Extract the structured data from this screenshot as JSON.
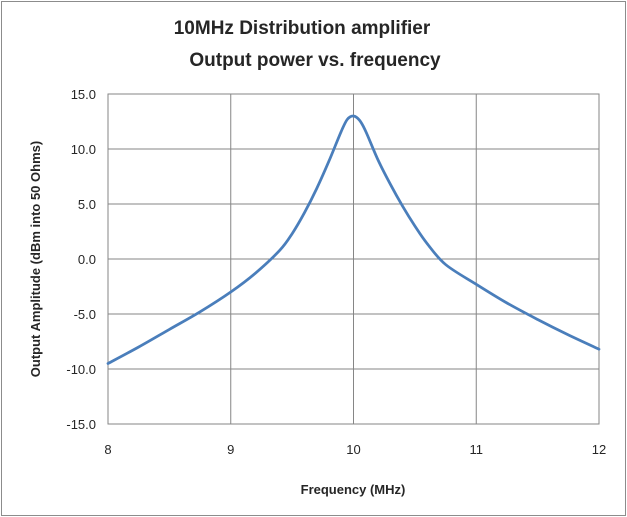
{
  "chart_data": {
    "type": "line",
    "title": [
      "10MHz Distribution amplifier",
      "Output power vs. frequency"
    ],
    "xlabel": "Frequency (MHz)",
    "ylabel": "Output Amplitude (dBm into 50 Ohms)",
    "xlim": [
      8,
      12
    ],
    "ylim": [
      -15,
      15
    ],
    "x_ticks": [
      8,
      9,
      10,
      11,
      12
    ],
    "x_tick_labels": [
      "8",
      "9",
      "10",
      "11",
      "12"
    ],
    "y_ticks": [
      -15,
      -10,
      -5,
      0,
      5,
      10,
      15
    ],
    "y_tick_labels": [
      "-15.0",
      "-10.0",
      "-5.0",
      "0.0",
      "5.0",
      "10.0",
      "15.0"
    ],
    "grid": true,
    "legend": "none",
    "series": [
      {
        "color": "#4a7ebb",
        "x": [
          8.0,
          8.25,
          8.5,
          8.75,
          9.0,
          9.2,
          9.4,
          9.5,
          9.6,
          9.7,
          9.8,
          9.9,
          9.95,
          10.0,
          10.05,
          10.1,
          10.2,
          10.3,
          10.4,
          10.5,
          10.6,
          10.75,
          11.0,
          11.25,
          11.5,
          11.75,
          12.0
        ],
        "y": [
          -9.5,
          -8.0,
          -6.4,
          -4.8,
          -3.0,
          -1.3,
          0.8,
          2.3,
          4.2,
          6.4,
          8.9,
          11.6,
          12.7,
          13.0,
          12.6,
          11.6,
          9.0,
          6.8,
          4.8,
          3.0,
          1.4,
          -0.5,
          -2.3,
          -4.0,
          -5.5,
          -6.9,
          -8.2
        ]
      }
    ]
  }
}
